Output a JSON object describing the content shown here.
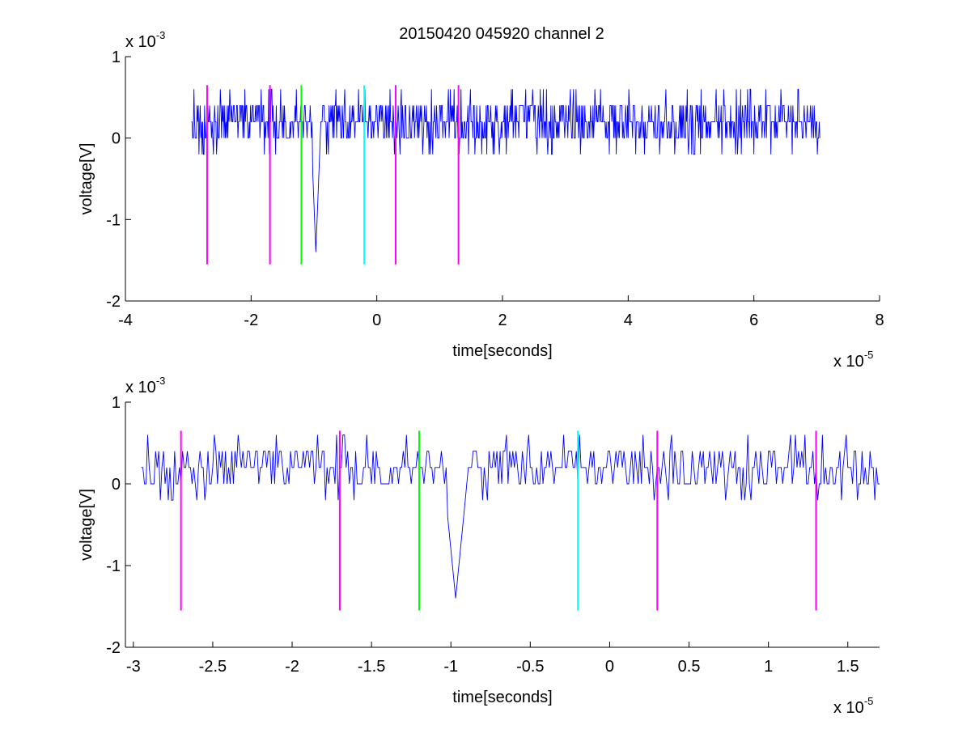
{
  "figure": {
    "title": "20150420 045920 channel 2",
    "background": "#ffffff"
  },
  "chart_data": [
    {
      "type": "line",
      "name": "top-panel",
      "title": "20150420 045920 channel 2",
      "xlabel": "time[seconds]",
      "ylabel": "voltage[V]",
      "x_multiplier": "x 10",
      "x_exponent": "-5",
      "y_multiplier": "x 10",
      "y_exponent": "-3",
      "xlim": [
        -4,
        8
      ],
      "ylim": [
        -2,
        1
      ],
      "xticks": [
        -4,
        -2,
        0,
        2,
        4,
        6,
        8
      ],
      "xtick_labels": [
        "-4",
        "-2",
        "0",
        "2",
        "4",
        "6",
        "8"
      ],
      "yticks": [
        -2,
        -1,
        0,
        1
      ],
      "ytick_labels": [
        "-2",
        "-1",
        "0",
        "1"
      ],
      "grid": false,
      "series": [
        {
          "color": "#0000ff",
          "x_range": [
            -2.95,
            7.05
          ],
          "baseline": 0.0002,
          "noise_levels": [
            0,
            0.2,
            0.4
          ],
          "dip": {
            "x": -0.97,
            "min": -1.4
          }
        }
      ],
      "markers": [
        {
          "x": -2.7,
          "color": "#ff00ff",
          "y_top": 0.65,
          "y_bottom": -1.55
        },
        {
          "x": -1.7,
          "color": "#ff00ff",
          "y_top": 0.65,
          "y_bottom": -1.55
        },
        {
          "x": -1.2,
          "color": "#00ff00",
          "y_top": 0.65,
          "y_bottom": -1.55
        },
        {
          "x": -0.2,
          "color": "#00ffff",
          "y_top": 0.65,
          "y_bottom": -1.55
        },
        {
          "x": 0.3,
          "color": "#ff00ff",
          "y_top": 0.65,
          "y_bottom": -1.55
        },
        {
          "x": 1.3,
          "color": "#ff00ff",
          "y_top": 0.65,
          "y_bottom": -1.55
        }
      ]
    },
    {
      "type": "line",
      "name": "bottom-panel",
      "title": "",
      "xlabel": "time[seconds]",
      "ylabel": "voltage[V]",
      "x_multiplier": "x 10",
      "x_exponent": "-5",
      "y_multiplier": "x 10",
      "y_exponent": "-3",
      "xlim": [
        -3.05,
        1.7
      ],
      "ylim": [
        -2,
        1
      ],
      "xticks": [
        -3,
        -2.5,
        -2,
        -1.5,
        -1,
        -0.5,
        0,
        0.5,
        1,
        1.5
      ],
      "xtick_labels": [
        "-3",
        "-2.5",
        "-2",
        "-1.5",
        "-1",
        "-0.5",
        "0",
        "0.5",
        "1",
        "1.5"
      ],
      "yticks": [
        -2,
        -1,
        0,
        1
      ],
      "ytick_labels": [
        "-2",
        "-1",
        "0",
        "1"
      ],
      "grid": false,
      "series": [
        {
          "color": "#0000ff",
          "x_range": [
            -2.95,
            1.7
          ],
          "baseline": 0.0002,
          "noise_levels": [
            0,
            0.2,
            0.4
          ],
          "dip": {
            "x": -0.97,
            "min": -1.4
          }
        }
      ],
      "markers": [
        {
          "x": -2.7,
          "color": "#ff00ff",
          "y_top": 0.65,
          "y_bottom": -1.55
        },
        {
          "x": -1.7,
          "color": "#ff00ff",
          "y_top": 0.65,
          "y_bottom": -1.55
        },
        {
          "x": -1.2,
          "color": "#00ff00",
          "y_top": 0.65,
          "y_bottom": -1.55
        },
        {
          "x": -0.2,
          "color": "#00ffff",
          "y_top": 0.65,
          "y_bottom": -1.55
        },
        {
          "x": 0.3,
          "color": "#ff00ff",
          "y_top": 0.65,
          "y_bottom": -1.55
        },
        {
          "x": 1.3,
          "color": "#ff00ff",
          "y_top": 0.65,
          "y_bottom": -1.55
        }
      ]
    }
  ]
}
